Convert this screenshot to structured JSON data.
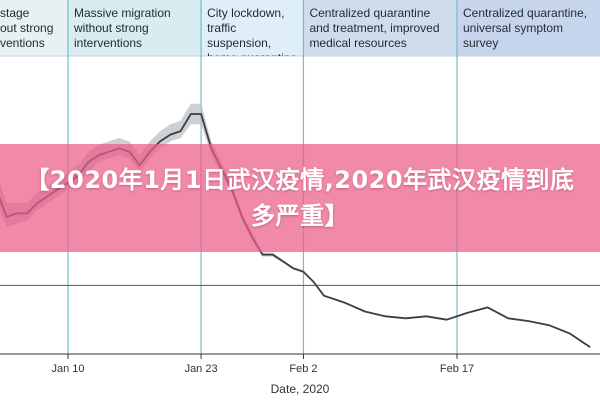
{
  "colors": {
    "phase_backgrounds": [
      "#e9f0f3",
      "#d8ecf1",
      "#dfeef8",
      "#cfdcee",
      "#c7d5ec"
    ],
    "phase_divider": "#6cc3c6",
    "line": "#3a3f44",
    "band": "#b9bec2",
    "banner": "#ec5c86"
  },
  "phases": [
    {
      "label": "stage\nout strong\nventions"
    },
    {
      "label": "Massive migration\nwithout strong\ninterventions"
    },
    {
      "label": "City lockdown,\ntraffic suspension,\nhome quarantine"
    },
    {
      "label": "Centralized quarantine\nand treatment, improved\nmedical resources"
    },
    {
      "label": "Centralized quarantine,\nuniversal symptom\nsurvey"
    }
  ],
  "banner": {
    "text": "【2020年1月1日武汉疫情,2020年武汉疫情到底多严重】"
  },
  "chart_data": {
    "type": "line",
    "xlabel": "Date, 2020",
    "ylabel": "",
    "x_ticks": [
      "Jan 10",
      "Jan 23",
      "Feb 2",
      "Feb 17"
    ],
    "x_range": [
      "2020-01-01",
      "2020-03-01"
    ],
    "phase_boundaries": [
      "2020-01-10",
      "2020-01-23",
      "2020-02-02",
      "2020-02-17"
    ],
    "reference_lines_y": [
      1
    ],
    "y_range": [
      0,
      4.2
    ],
    "grid": false,
    "series": [
      {
        "x": [
          "2020-01-01",
          "2020-01-02",
          "2020-01-03",
          "2020-01-04",
          "2020-01-05",
          "2020-01-06",
          "2020-01-07",
          "2020-01-08",
          "2020-01-09",
          "2020-01-10",
          "2020-01-11",
          "2020-01-12",
          "2020-01-13",
          "2020-01-14",
          "2020-01-15",
          "2020-01-16",
          "2020-01-17",
          "2020-01-18",
          "2020-01-19",
          "2020-01-20",
          "2020-01-21",
          "2020-01-22",
          "2020-01-23",
          "2020-01-24",
          "2020-01-25",
          "2020-01-26",
          "2020-01-27",
          "2020-01-28",
          "2020-01-29",
          "2020-01-30",
          "2020-01-31",
          "2020-02-01",
          "2020-02-02",
          "2020-02-03",
          "2020-02-04",
          "2020-02-05",
          "2020-02-06",
          "2020-02-08",
          "2020-02-10",
          "2020-02-12",
          "2020-02-14",
          "2020-02-16",
          "2020-02-18",
          "2020-02-20",
          "2020-02-22",
          "2020-02-24",
          "2020-02-26",
          "2020-02-28",
          "2020-03-01"
        ],
        "y": [
          3.9,
          3.6,
          2.4,
          2.0,
          2.05,
          2.05,
          2.2,
          2.3,
          2.4,
          2.5,
          2.6,
          2.8,
          2.9,
          2.95,
          3.0,
          2.95,
          2.75,
          2.95,
          3.1,
          3.2,
          3.25,
          3.5,
          3.5,
          3.0,
          2.7,
          2.4,
          2.0,
          1.7,
          1.45,
          1.45,
          1.35,
          1.25,
          1.2,
          1.05,
          0.85,
          0.8,
          0.75,
          0.62,
          0.55,
          0.52,
          0.55,
          0.5,
          0.6,
          0.68,
          0.52,
          0.48,
          0.42,
          0.3,
          0.1
        ],
        "lower": [
          3.6,
          3.3,
          2.2,
          1.85,
          1.9,
          1.95,
          2.1,
          2.2,
          2.3,
          2.4,
          2.5,
          2.65,
          2.8,
          2.85,
          2.9,
          2.85,
          2.65,
          2.85,
          3.0,
          3.1,
          3.15,
          3.35,
          3.35,
          2.9,
          2.6,
          2.35,
          1.95,
          1.65,
          1.42,
          1.42,
          1.33,
          1.23,
          1.18,
          1.04,
          0.84,
          0.79,
          0.74,
          0.61,
          0.54,
          0.51,
          0.54,
          0.49,
          0.59,
          0.67,
          0.51,
          0.47,
          0.41,
          0.29,
          0.09
        ],
        "upper": [
          4.3,
          3.95,
          2.65,
          2.2,
          2.2,
          2.2,
          2.35,
          2.45,
          2.55,
          2.65,
          2.75,
          2.95,
          3.05,
          3.1,
          3.15,
          3.1,
          2.9,
          3.1,
          3.25,
          3.35,
          3.4,
          3.65,
          3.65,
          3.1,
          2.8,
          2.48,
          2.06,
          1.76,
          1.48,
          1.48,
          1.37,
          1.27,
          1.22,
          1.06,
          0.86,
          0.81,
          0.76,
          0.63,
          0.56,
          0.53,
          0.56,
          0.51,
          0.61,
          0.69,
          0.53,
          0.49,
          0.43,
          0.31,
          0.11
        ]
      }
    ]
  }
}
